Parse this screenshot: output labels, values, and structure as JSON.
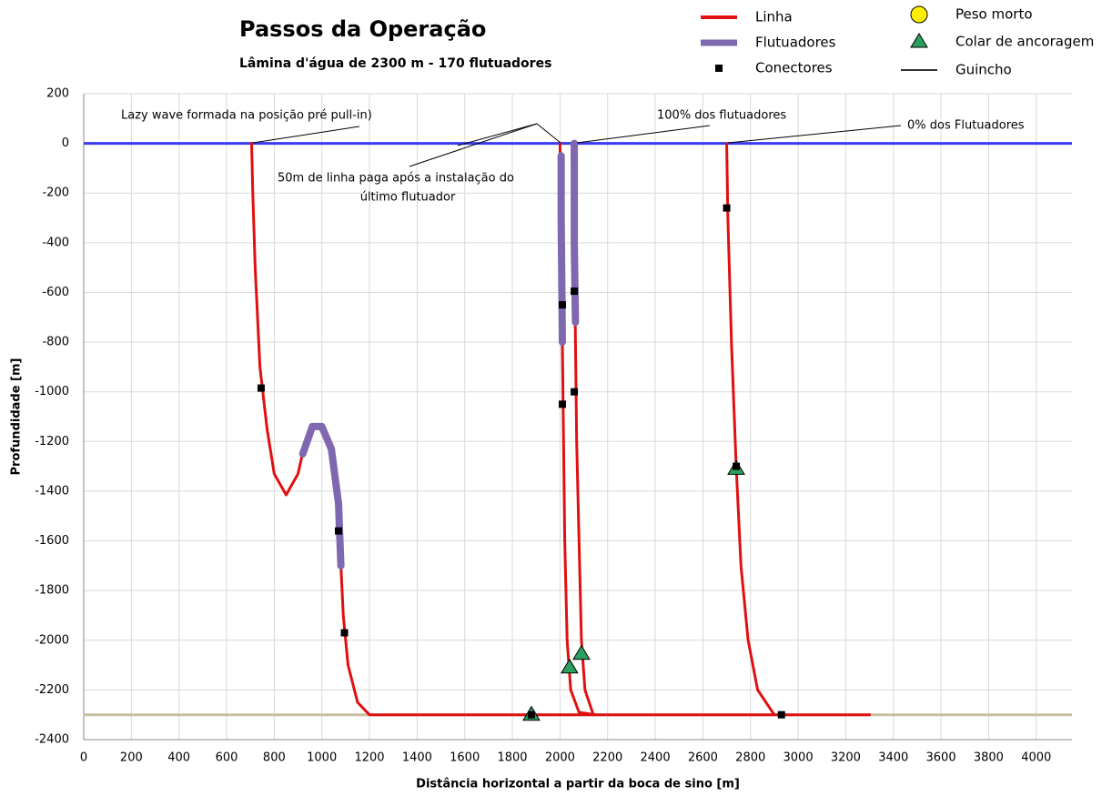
{
  "chart_data": {
    "type": "line",
    "title": "Passos da Operação",
    "subtitle": "Lâmina d'água de 2300 m - 170 flutuadores",
    "xlabel": "Distância horizontal a partir da boca de sino [m]",
    "ylabel": "Profundidade [m]",
    "xlim": [
      0,
      4150
    ],
    "ylim": [
      -2400,
      200
    ],
    "xticks": [
      0,
      200,
      400,
      600,
      800,
      1000,
      1200,
      1400,
      1600,
      1800,
      2000,
      2200,
      2400,
      2600,
      2800,
      3000,
      3200,
      3400,
      3600,
      3800,
      4000
    ],
    "yticks": [
      -2400,
      -2200,
      -2000,
      -1800,
      -1600,
      -1400,
      -1200,
      -1000,
      -800,
      -600,
      -400,
      -200,
      0,
      200
    ],
    "grid": true,
    "hlines": [
      {
        "value": 0,
        "color": "#3a3af0"
      },
      {
        "value": -2300,
        "color": "#c8bfa0"
      }
    ],
    "series": [
      {
        "name": "Linha",
        "color": "#e01010",
        "style": "line",
        "x": [
          705,
          710,
          720,
          740,
          770,
          800,
          850,
          900,
          930,
          960,
          1000,
          1040,
          1070,
          1080,
          1090,
          1110,
          1150,
          1200,
          3300,
          null,
          2000,
          2005,
          2010,
          2015,
          2020,
          2030,
          2045,
          2080,
          2150,
          null,
          2050,
          2060,
          2065,
          2070,
          2080,
          2090,
          2105,
          2140,
          null,
          2700,
          2705,
          2720,
          2740,
          2760,
          2790,
          2830,
          2900
        ],
        "values": [
          0,
          -200,
          -500,
          -900,
          -1150,
          -1330,
          -1415,
          -1330,
          -1200,
          -1140,
          -1140,
          -1230,
          -1450,
          -1700,
          -1900,
          -2100,
          -2250,
          -2300,
          -2300,
          null,
          0,
          -300,
          -800,
          -1200,
          -1600,
          -2000,
          -2200,
          -2290,
          -2300,
          null,
          0,
          -400,
          -800,
          -1200,
          -1600,
          -2000,
          -2200,
          -2300,
          null,
          0,
          -300,
          -800,
          -1300,
          -1700,
          -2000,
          -2200,
          -2300
        ]
      },
      {
        "name": "Flutuadores",
        "color": "#8068b0",
        "style": "thick",
        "x": [
          920,
          960,
          1000,
          1040,
          1070,
          1080,
          null,
          2005,
          2005,
          2010,
          null,
          2060,
          2060,
          2065
        ],
        "values": [
          -1250,
          -1140,
          -1140,
          -1230,
          -1450,
          -1700,
          null,
          -50,
          -300,
          -800,
          null,
          0,
          -400,
          -720
        ]
      },
      {
        "name": "Conectores",
        "color": "#000000",
        "style": "square",
        "x": [
          745,
          1070,
          1095,
          2010,
          2010,
          2060,
          2060,
          2700,
          2740,
          2930,
          1880
        ],
        "values": [
          -985,
          -1560,
          -1970,
          -650,
          -1050,
          -595,
          -1000,
          -260,
          -1300,
          -2300,
          -2300
        ]
      },
      {
        "name": "Peso morto",
        "color": "#ffee00",
        "style": "circle",
        "x": [],
        "values": []
      },
      {
        "name": "Colar de ancoragem",
        "color": "#2aa060",
        "style": "triangle",
        "x": [
          1880,
          2040,
          2090,
          2740
        ],
        "values": [
          -2300,
          -2110,
          -2055,
          -1310
        ]
      },
      {
        "name": "Guincho",
        "color": "#333333",
        "style": "line",
        "x": [],
        "values": []
      }
    ],
    "annotations": [
      "Lazy wave formada na posição pré pull-in)",
      "50m de linha paga após a instalação do",
      "último flutuador",
      "100% dos flutuadores",
      "0% dos Flutuadores"
    ]
  }
}
